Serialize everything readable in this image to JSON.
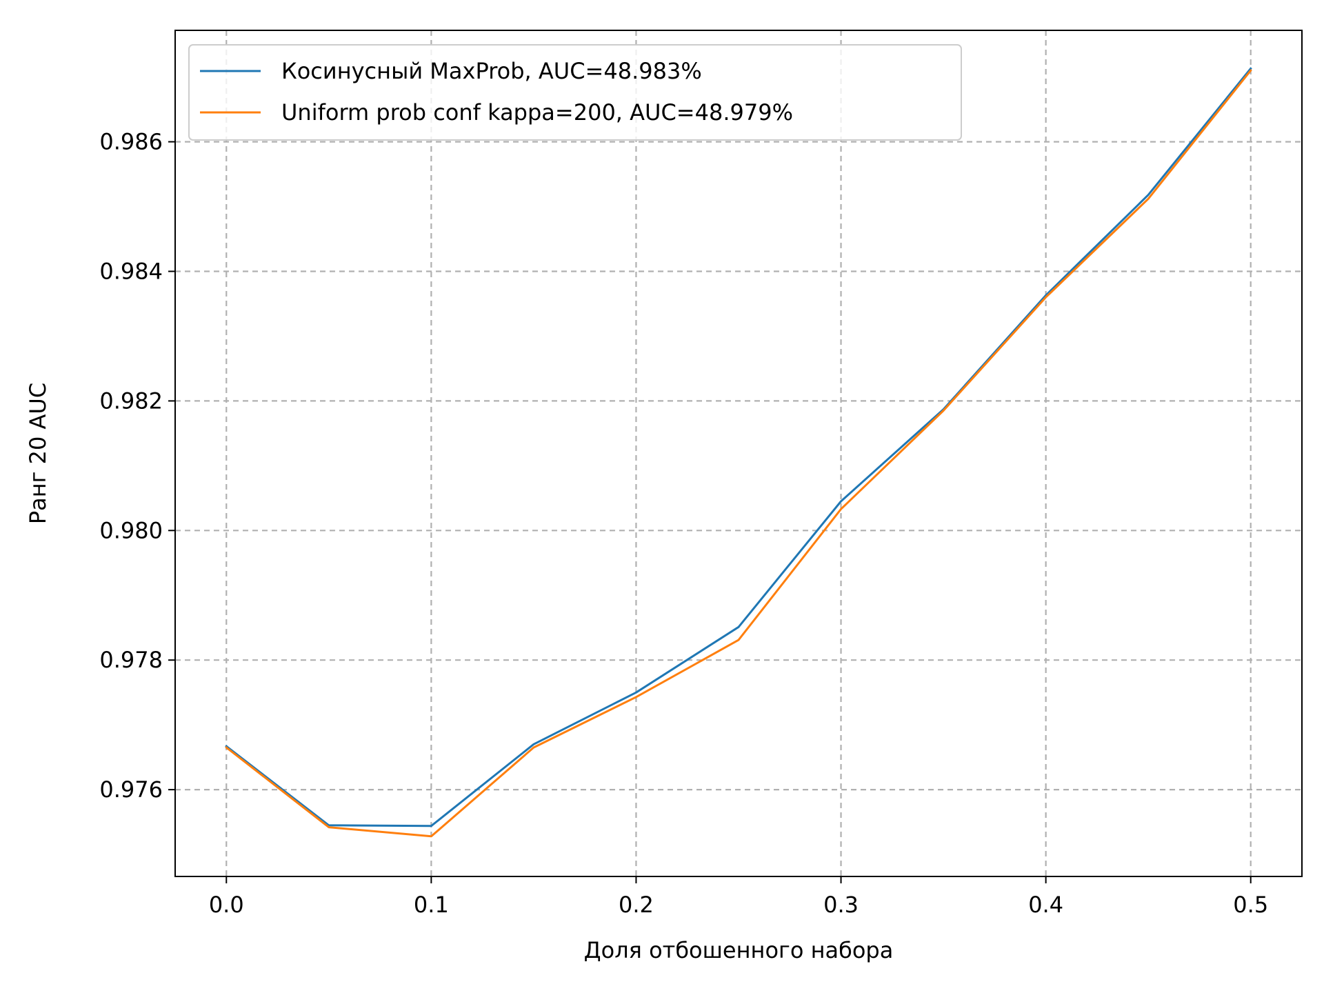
{
  "chart_data": {
    "type": "line",
    "title": "",
    "xlabel": "Доля отбошенного набора",
    "ylabel": "Ранг 20 AUC",
    "xlim": [
      -0.025,
      0.525
    ],
    "ylim": [
      0.97466,
      0.98772
    ],
    "x_ticks": [
      0.0,
      0.1,
      0.2,
      0.3,
      0.4,
      0.5
    ],
    "x_tick_labels": [
      "0.0",
      "0.1",
      "0.2",
      "0.3",
      "0.4",
      "0.5"
    ],
    "y_ticks": [
      0.976,
      0.978,
      0.98,
      0.982,
      0.984,
      0.986
    ],
    "y_tick_labels": [
      "0.976",
      "0.978",
      "0.980",
      "0.982",
      "0.984",
      "0.986"
    ],
    "grid": true,
    "legend_position": "top-left",
    "x": [
      0.0,
      0.05,
      0.1,
      0.15,
      0.2,
      0.25,
      0.3,
      0.35,
      0.4,
      0.45,
      0.5
    ],
    "series": [
      {
        "name": "Косинусный MaxProb, AUC=48.983%",
        "color": "#1f77b4",
        "values": [
          0.97667,
          0.97545,
          0.97544,
          0.9767,
          0.9775,
          0.97851,
          0.98045,
          0.98187,
          0.98363,
          0.98518,
          0.98713
        ]
      },
      {
        "name": "Uniform prob conf kappa=200, AUC=48.979%",
        "color": "#ff7f0e",
        "values": [
          0.97665,
          0.97542,
          0.97528,
          0.97665,
          0.97743,
          0.97831,
          0.98033,
          0.98185,
          0.9836,
          0.98512,
          0.9871
        ]
      }
    ]
  }
}
